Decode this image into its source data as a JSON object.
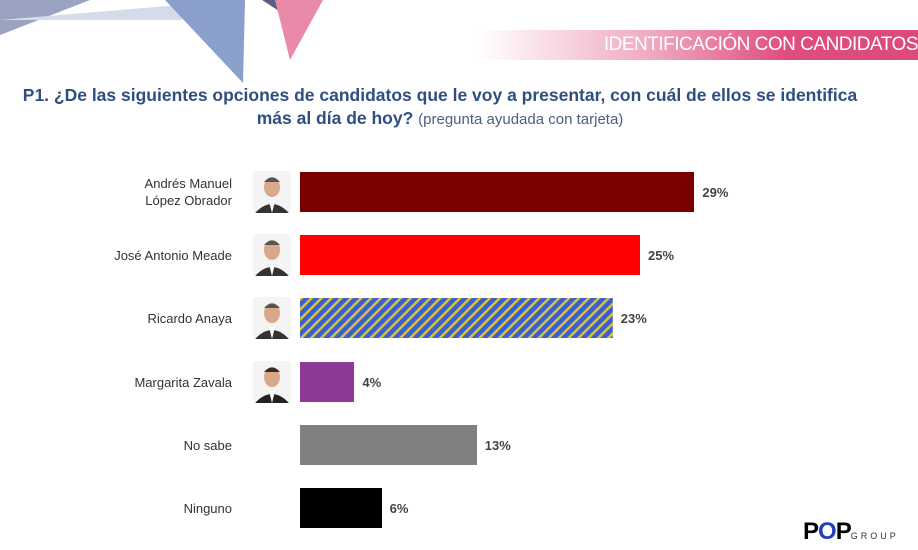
{
  "header": {
    "banner": "IDENTIFICACIÓN CON CANDIDATOS"
  },
  "question": {
    "main": "P1. ¿De las siguientes opciones de candidatos que le voy a presentar, con cuál de ellos se identifica más al día de hoy?",
    "note": "(pregunta ayudada con tarjeta)"
  },
  "chart_data": {
    "type": "bar",
    "orientation": "horizontal",
    "categories": [
      "Andrés Manuel López Obrador",
      "José Antonio Meade",
      "Ricardo Anaya",
      "Margarita Zavala",
      "No sabe",
      "Ninguno"
    ],
    "values": [
      29,
      25,
      23,
      4,
      13,
      6
    ],
    "labels": [
      "29%",
      "25%",
      "23%",
      "4%",
      "13%",
      "6%"
    ],
    "colors": [
      "#7a0000",
      "#ff0000",
      "#3a5fd0",
      "#8b3a96",
      "#808080",
      "#000000"
    ],
    "pattern": [
      null,
      null,
      "blue-yellow-diagonal-stripes",
      null,
      null,
      null
    ],
    "has_photo": [
      true,
      true,
      true,
      true,
      false,
      false
    ],
    "grid": false
  },
  "logo": {
    "text": "POP",
    "suffix": "GROUP"
  }
}
